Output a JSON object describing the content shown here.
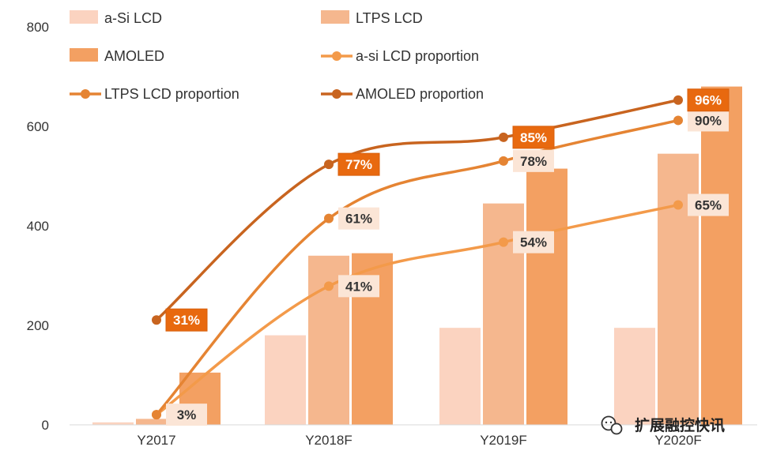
{
  "chart_data": {
    "type": "bar",
    "categories": [
      "Y2017",
      "Y2018F",
      "Y2019F",
      "Y2020F"
    ],
    "ylim": [
      0,
      800
    ],
    "yticks": [
      "0",
      "200",
      "400",
      "600",
      "800"
    ],
    "grid": false,
    "legend_position": "top",
    "series": [
      {
        "name": "a-Si LCD",
        "kind": "bar",
        "color": "#fbd3c0",
        "values": [
          5,
          180,
          195,
          195
        ]
      },
      {
        "name": "LTPS LCD",
        "kind": "bar",
        "color": "#f5b78e",
        "values": [
          12,
          340,
          445,
          545
        ]
      },
      {
        "name": "AMOLED",
        "kind": "bar",
        "color": "#f3a062",
        "values": [
          105,
          345,
          515,
          680
        ]
      },
      {
        "name": "a-si LCD proportion",
        "kind": "line",
        "color": "#f39a4a",
        "values": [
          3,
          41,
          54,
          65
        ],
        "labels": [
          "3%",
          "41%",
          "54%",
          "65%"
        ],
        "label_style": "light"
      },
      {
        "name": "LTPS LCD proportion",
        "kind": "line",
        "color": "#e58433",
        "values": [
          3,
          61,
          78,
          90
        ],
        "labels": [
          "",
          "61%",
          "78%",
          "90%"
        ],
        "label_style": "light"
      },
      {
        "name": "AMOLED proportion",
        "kind": "line",
        "color": "#c8641f",
        "values": [
          31,
          77,
          85,
          96
        ],
        "labels": [
          "31%",
          "77%",
          "85%",
          "96%"
        ],
        "label_style": "dark"
      }
    ]
  },
  "watermark": {
    "text": "扩展融控快讯",
    "icon": "wechat-icon"
  }
}
